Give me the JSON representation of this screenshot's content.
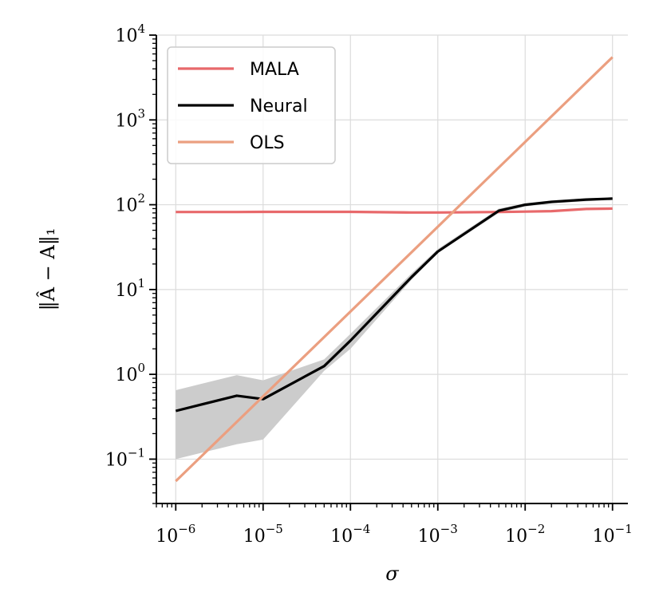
{
  "chart_data": {
    "type": "line",
    "xlabel": "σ",
    "ylabel": "‖Â − A‖₁",
    "xscale": "log",
    "yscale": "log",
    "xlim": [
      6e-07,
      0.15
    ],
    "ylim": [
      0.03,
      10000
    ],
    "x_ticks": [
      {
        "value": 1e-06,
        "base": "10",
        "exp": "−6"
      },
      {
        "value": 1e-05,
        "base": "10",
        "exp": "−5"
      },
      {
        "value": 0.0001,
        "base": "10",
        "exp": "−4"
      },
      {
        "value": 0.001,
        "base": "10",
        "exp": "−3"
      },
      {
        "value": 0.01,
        "base": "10",
        "exp": "−2"
      },
      {
        "value": 0.1,
        "base": "10",
        "exp": "−1"
      }
    ],
    "y_ticks": [
      {
        "value": 0.1,
        "base": "10",
        "exp": "−1"
      },
      {
        "value": 1,
        "base": "10",
        "exp": "0"
      },
      {
        "value": 10,
        "base": "10",
        "exp": "1"
      },
      {
        "value": 100,
        "base": "10",
        "exp": "2"
      },
      {
        "value": 1000,
        "base": "10",
        "exp": "3"
      },
      {
        "value": 10000,
        "base": "10",
        "exp": "4"
      }
    ],
    "grid": true,
    "legend_position": "top-left",
    "series": [
      {
        "name": "MALA",
        "color": "#e8696b",
        "x": [
          1e-06,
          5e-06,
          1e-05,
          5e-05,
          0.0001,
          0.0005,
          0.001,
          0.005,
          0.01,
          0.02,
          0.05,
          0.1
        ],
        "y": [
          82,
          82,
          82.5,
          82.5,
          82.5,
          81,
          81,
          82,
          83,
          84,
          89,
          90
        ]
      },
      {
        "name": "Neural",
        "color": "#000000",
        "x": [
          1e-06,
          5e-06,
          1e-05,
          5e-05,
          0.0001,
          0.0005,
          0.001,
          0.005,
          0.01,
          0.02,
          0.05,
          0.1
        ],
        "y": [
          0.37,
          0.56,
          0.51,
          1.25,
          2.5,
          14,
          28,
          85,
          100,
          108,
          115,
          118
        ],
        "band_lower": [
          0.1,
          0.15,
          0.17,
          1.1,
          2.0,
          13,
          27,
          80,
          95,
          104,
          110,
          114
        ],
        "band_upper": [
          0.65,
          0.98,
          0.85,
          1.5,
          3.0,
          15.5,
          30,
          90,
          104,
          112,
          119,
          121
        ],
        "band_color": "#cccccc"
      },
      {
        "name": "OLS",
        "color": "#eb9f80",
        "x": [
          1e-06,
          0.1
        ],
        "y": [
          0.055,
          5500
        ]
      }
    ]
  }
}
